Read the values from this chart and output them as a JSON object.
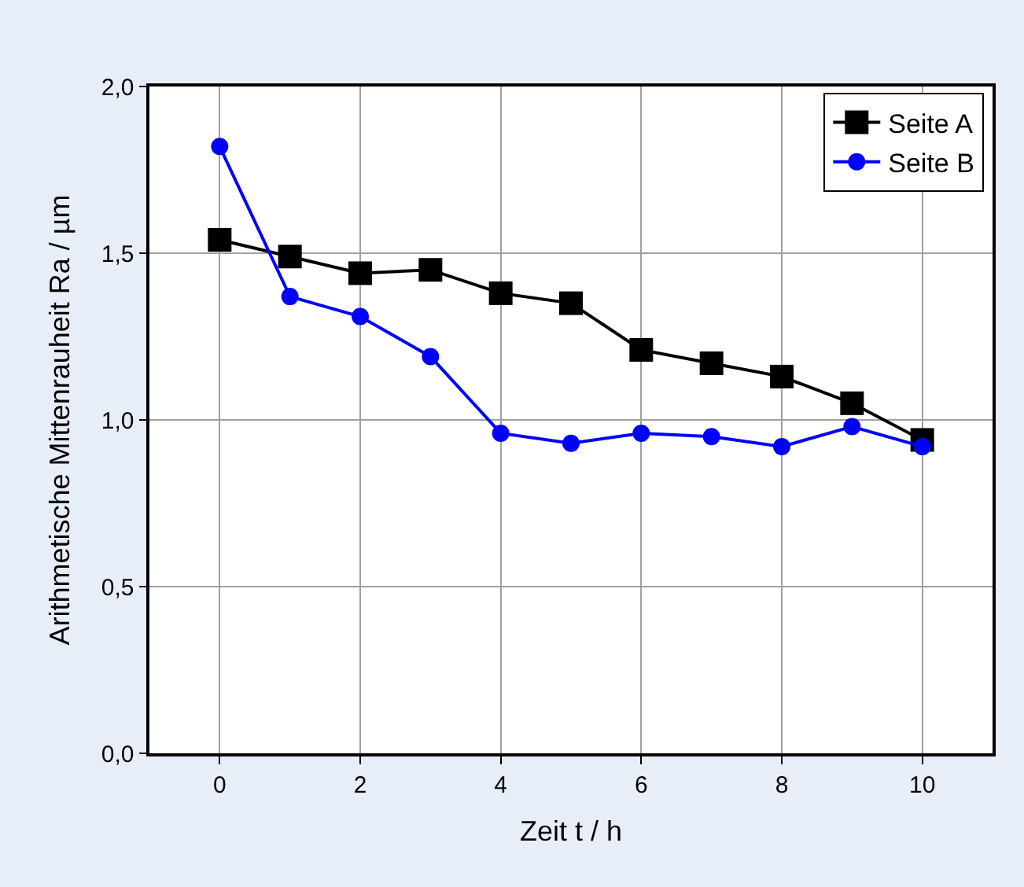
{
  "chart_data": {
    "type": "line",
    "xlabel": "Zeit t / h",
    "ylabel": "Arithmetische Mittenrauheit Ra / µm",
    "x": [
      0,
      1,
      2,
      3,
      4,
      5,
      6,
      7,
      8,
      9,
      10
    ],
    "series": [
      {
        "name": "Seite A",
        "color": "#000000",
        "marker": "square",
        "values": [
          1.54,
          1.49,
          1.44,
          1.45,
          1.38,
          1.35,
          1.21,
          1.17,
          1.13,
          1.05,
          0.94
        ]
      },
      {
        "name": "Seite B",
        "color": "#0000ff",
        "marker": "circle",
        "values": [
          1.82,
          1.37,
          1.31,
          1.19,
          0.96,
          0.93,
          0.96,
          0.95,
          0.92,
          0.98,
          0.92
        ]
      }
    ],
    "xlim": [
      -1,
      11
    ],
    "xticks": [
      0,
      2,
      4,
      6,
      8,
      10
    ],
    "ylim": [
      0,
      2
    ],
    "yticks": [
      {
        "value": 0,
        "label": "0,0"
      },
      {
        "value": 0.5,
        "label": "0,5"
      },
      {
        "value": 1,
        "label": "1,0"
      },
      {
        "value": 1.5,
        "label": "1,5"
      },
      {
        "value": 2,
        "label": "2,0"
      }
    ],
    "grid": true,
    "legend": "top right",
    "line_style": "solid"
  }
}
